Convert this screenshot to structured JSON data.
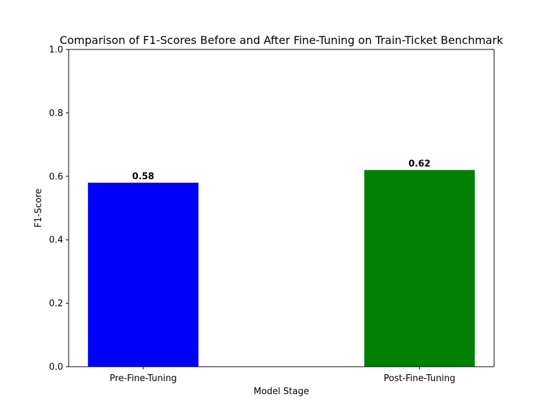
{
  "chart_data": {
    "type": "bar",
    "title": "Comparison of F1-Scores Before and After Fine-Tuning on Train-Ticket Benchmark",
    "xlabel": "Model Stage",
    "ylabel": "F1-Score",
    "categories": [
      "Pre-Fine-Tuning",
      "Post-Fine-Tuning"
    ],
    "values": [
      0.58,
      0.62
    ],
    "value_labels": [
      "0.58",
      "0.62"
    ],
    "colors": [
      "#0000ff",
      "#008000"
    ],
    "ylim": [
      0,
      1.0
    ],
    "yticks": [
      0.0,
      0.2,
      0.4,
      0.6,
      0.8,
      1.0
    ],
    "ytick_labels": [
      "0.0",
      "0.2",
      "0.4",
      "0.6",
      "0.8",
      "1.0"
    ],
    "grid": false,
    "legend": null
  }
}
